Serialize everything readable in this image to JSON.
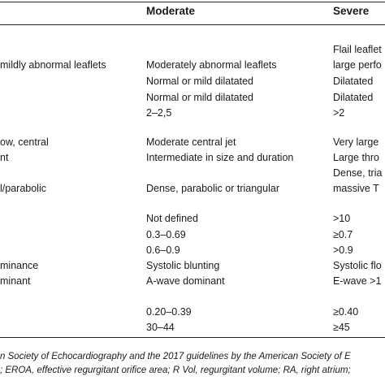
{
  "header": {
    "moderate": "Moderate",
    "severe": "Severe"
  },
  "rows": {
    "r1_severe": "Flail leaflet",
    "r2_mild": "mildly abnormal leaflets",
    "r2_moderate": "Moderately abnormal leaflets",
    "r2_severe": "large perfo",
    "r3_moderate": "Normal or mild dilatated",
    "r3_severe": "Dilatated",
    "r4_moderate": "Normal or mild dilatated",
    "r4_severe": "Dilatated",
    "r5_moderate": "2–2,5",
    "r5_severe": ">2",
    "r6_mild": "ow, central",
    "r6_moderate": "Moderate central jet",
    "r6_severe": "Very large",
    "r7_mild": "nt",
    "r7_moderate": "Intermediate in size and duration",
    "r7_severe": "Large thro",
    "r8_severe": "Dense, tria",
    "r9_mild": "l/parabolic",
    "r9_moderate": "Dense, parabolic or triangular",
    "r9_severe": "massive T",
    "r10_moderate": "Not defined",
    "r10_severe": ">10",
    "r11_moderate": "0.3–0.69",
    "r11_severe": "≥0.7",
    "r12_moderate": "0.6–0.9",
    "r12_severe": ">0.9",
    "r13_mild": "minance",
    "r13_moderate": "Systolic blunting",
    "r13_severe": "Systolic flo",
    "r14_mild": "minant",
    "r14_moderate": "A-wave dominant",
    "r14_severe": "E-wave >1",
    "r15_moderate": "0.20–0.39",
    "r15_severe": "≥0.40",
    "r16_moderate": "30–44",
    "r16_severe": "≥45"
  },
  "footnote": {
    "line1": "n Society of Echocardiography and the 2017 guidelines by the American Society of E",
    "line2": "; EROA, effective regurgitant orifice area; R Vol, regurgitant volume; RA, right atrium;"
  }
}
